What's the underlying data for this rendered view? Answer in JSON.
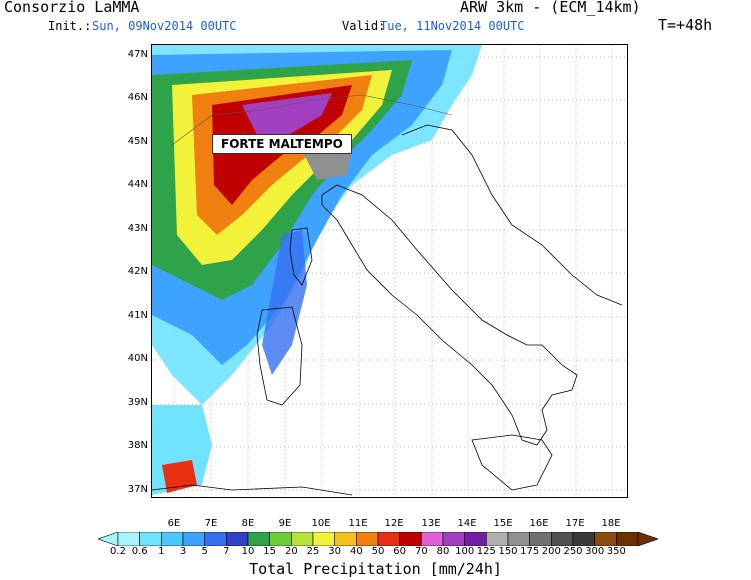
{
  "header": {
    "org": "Consorzio LaMMA",
    "model": "ARW 3km - (ECM_14km)",
    "init_label": "Init.:",
    "init_value": "Sun, 09Nov2014 00UTC",
    "valid_label": "Valid:",
    "valid_value": "Tue, 11Nov2014 00UTC",
    "lead": "T=+48h"
  },
  "map": {
    "lat_labels": [
      "47N",
      "46N",
      "45N",
      "44N",
      "43N",
      "42N",
      "41N",
      "40N",
      "39N",
      "38N",
      "37N"
    ],
    "lon_labels": [
      "6E",
      "7E",
      "8E",
      "9E",
      "10E",
      "11E",
      "12E",
      "13E",
      "14E",
      "15E",
      "16E",
      "17E",
      "18E"
    ],
    "callout": "FORTE MALTEMPO"
  },
  "colorbar": {
    "title": "Total Precipitation [mm/24h]",
    "labels": [
      "0.2",
      "0.6",
      "1",
      "3",
      "5",
      "7",
      "10",
      "15",
      "20",
      "25",
      "30",
      "40",
      "50",
      "60",
      "70",
      "80",
      "100",
      "125",
      "150",
      "175",
      "200",
      "250",
      "300",
      "350"
    ],
    "colors": [
      "#a8f4ff",
      "#6fe2ff",
      "#4cc8ff",
      "#3ea3ff",
      "#3570f0",
      "#3340c8",
      "#2fa34a",
      "#6dcc3a",
      "#b6e23a",
      "#f2f23a",
      "#f4c020",
      "#f08010",
      "#e83010",
      "#c00000",
      "#e060d8",
      "#a040c0",
      "#7020a0",
      "#b0b0b0",
      "#909090",
      "#707070",
      "#505050",
      "#3a3a3a",
      "#8a4c10",
      "#6a3000"
    ]
  }
}
